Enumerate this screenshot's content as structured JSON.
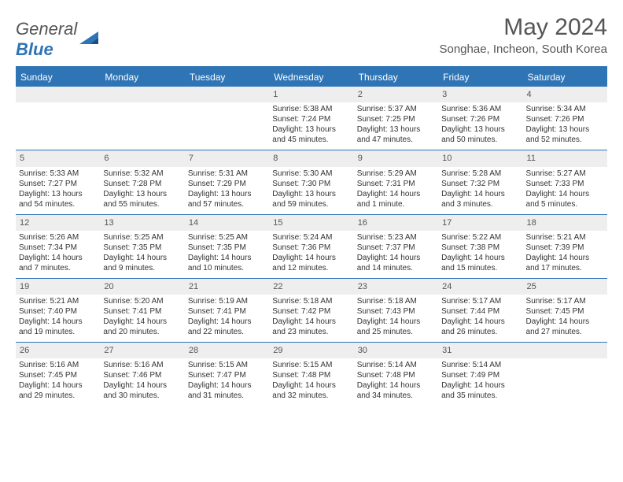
{
  "logo": {
    "word1": "General",
    "word2": "Blue"
  },
  "title": "May 2024",
  "location": "Songhae, Incheon, South Korea",
  "colors": {
    "brand": "#2f74b5",
    "daynum_bg": "#eeeeee",
    "text": "#333333",
    "muted": "#555555",
    "bg": "#ffffff"
  },
  "dayNames": [
    "Sunday",
    "Monday",
    "Tuesday",
    "Wednesday",
    "Thursday",
    "Friday",
    "Saturday"
  ],
  "weeks": [
    [
      {
        "n": "",
        "sr": "",
        "ss": "",
        "dl": ""
      },
      {
        "n": "",
        "sr": "",
        "ss": "",
        "dl": ""
      },
      {
        "n": "",
        "sr": "",
        "ss": "",
        "dl": ""
      },
      {
        "n": "1",
        "sr": "Sunrise: 5:38 AM",
        "ss": "Sunset: 7:24 PM",
        "dl": "Daylight: 13 hours and 45 minutes."
      },
      {
        "n": "2",
        "sr": "Sunrise: 5:37 AM",
        "ss": "Sunset: 7:25 PM",
        "dl": "Daylight: 13 hours and 47 minutes."
      },
      {
        "n": "3",
        "sr": "Sunrise: 5:36 AM",
        "ss": "Sunset: 7:26 PM",
        "dl": "Daylight: 13 hours and 50 minutes."
      },
      {
        "n": "4",
        "sr": "Sunrise: 5:34 AM",
        "ss": "Sunset: 7:26 PM",
        "dl": "Daylight: 13 hours and 52 minutes."
      }
    ],
    [
      {
        "n": "5",
        "sr": "Sunrise: 5:33 AM",
        "ss": "Sunset: 7:27 PM",
        "dl": "Daylight: 13 hours and 54 minutes."
      },
      {
        "n": "6",
        "sr": "Sunrise: 5:32 AM",
        "ss": "Sunset: 7:28 PM",
        "dl": "Daylight: 13 hours and 55 minutes."
      },
      {
        "n": "7",
        "sr": "Sunrise: 5:31 AM",
        "ss": "Sunset: 7:29 PM",
        "dl": "Daylight: 13 hours and 57 minutes."
      },
      {
        "n": "8",
        "sr": "Sunrise: 5:30 AM",
        "ss": "Sunset: 7:30 PM",
        "dl": "Daylight: 13 hours and 59 minutes."
      },
      {
        "n": "9",
        "sr": "Sunrise: 5:29 AM",
        "ss": "Sunset: 7:31 PM",
        "dl": "Daylight: 14 hours and 1 minute."
      },
      {
        "n": "10",
        "sr": "Sunrise: 5:28 AM",
        "ss": "Sunset: 7:32 PM",
        "dl": "Daylight: 14 hours and 3 minutes."
      },
      {
        "n": "11",
        "sr": "Sunrise: 5:27 AM",
        "ss": "Sunset: 7:33 PM",
        "dl": "Daylight: 14 hours and 5 minutes."
      }
    ],
    [
      {
        "n": "12",
        "sr": "Sunrise: 5:26 AM",
        "ss": "Sunset: 7:34 PM",
        "dl": "Daylight: 14 hours and 7 minutes."
      },
      {
        "n": "13",
        "sr": "Sunrise: 5:25 AM",
        "ss": "Sunset: 7:35 PM",
        "dl": "Daylight: 14 hours and 9 minutes."
      },
      {
        "n": "14",
        "sr": "Sunrise: 5:25 AM",
        "ss": "Sunset: 7:35 PM",
        "dl": "Daylight: 14 hours and 10 minutes."
      },
      {
        "n": "15",
        "sr": "Sunrise: 5:24 AM",
        "ss": "Sunset: 7:36 PM",
        "dl": "Daylight: 14 hours and 12 minutes."
      },
      {
        "n": "16",
        "sr": "Sunrise: 5:23 AM",
        "ss": "Sunset: 7:37 PM",
        "dl": "Daylight: 14 hours and 14 minutes."
      },
      {
        "n": "17",
        "sr": "Sunrise: 5:22 AM",
        "ss": "Sunset: 7:38 PM",
        "dl": "Daylight: 14 hours and 15 minutes."
      },
      {
        "n": "18",
        "sr": "Sunrise: 5:21 AM",
        "ss": "Sunset: 7:39 PM",
        "dl": "Daylight: 14 hours and 17 minutes."
      }
    ],
    [
      {
        "n": "19",
        "sr": "Sunrise: 5:21 AM",
        "ss": "Sunset: 7:40 PM",
        "dl": "Daylight: 14 hours and 19 minutes."
      },
      {
        "n": "20",
        "sr": "Sunrise: 5:20 AM",
        "ss": "Sunset: 7:41 PM",
        "dl": "Daylight: 14 hours and 20 minutes."
      },
      {
        "n": "21",
        "sr": "Sunrise: 5:19 AM",
        "ss": "Sunset: 7:41 PM",
        "dl": "Daylight: 14 hours and 22 minutes."
      },
      {
        "n": "22",
        "sr": "Sunrise: 5:18 AM",
        "ss": "Sunset: 7:42 PM",
        "dl": "Daylight: 14 hours and 23 minutes."
      },
      {
        "n": "23",
        "sr": "Sunrise: 5:18 AM",
        "ss": "Sunset: 7:43 PM",
        "dl": "Daylight: 14 hours and 25 minutes."
      },
      {
        "n": "24",
        "sr": "Sunrise: 5:17 AM",
        "ss": "Sunset: 7:44 PM",
        "dl": "Daylight: 14 hours and 26 minutes."
      },
      {
        "n": "25",
        "sr": "Sunrise: 5:17 AM",
        "ss": "Sunset: 7:45 PM",
        "dl": "Daylight: 14 hours and 27 minutes."
      }
    ],
    [
      {
        "n": "26",
        "sr": "Sunrise: 5:16 AM",
        "ss": "Sunset: 7:45 PM",
        "dl": "Daylight: 14 hours and 29 minutes."
      },
      {
        "n": "27",
        "sr": "Sunrise: 5:16 AM",
        "ss": "Sunset: 7:46 PM",
        "dl": "Daylight: 14 hours and 30 minutes."
      },
      {
        "n": "28",
        "sr": "Sunrise: 5:15 AM",
        "ss": "Sunset: 7:47 PM",
        "dl": "Daylight: 14 hours and 31 minutes."
      },
      {
        "n": "29",
        "sr": "Sunrise: 5:15 AM",
        "ss": "Sunset: 7:48 PM",
        "dl": "Daylight: 14 hours and 32 minutes."
      },
      {
        "n": "30",
        "sr": "Sunrise: 5:14 AM",
        "ss": "Sunset: 7:48 PM",
        "dl": "Daylight: 14 hours and 34 minutes."
      },
      {
        "n": "31",
        "sr": "Sunrise: 5:14 AM",
        "ss": "Sunset: 7:49 PM",
        "dl": "Daylight: 14 hours and 35 minutes."
      },
      {
        "n": "",
        "sr": "",
        "ss": "",
        "dl": ""
      }
    ]
  ]
}
